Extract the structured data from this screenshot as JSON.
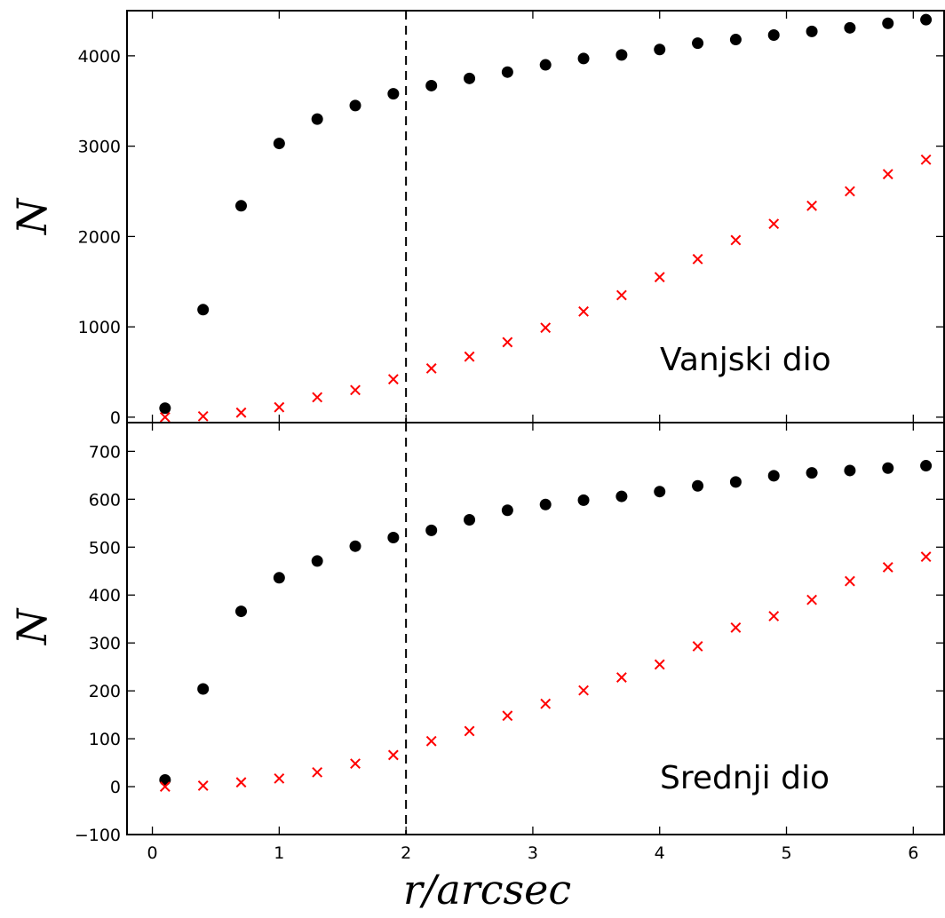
{
  "chart_data": [
    {
      "type": "scatter",
      "panel": "top",
      "annotation": "Vanjski dio",
      "ylabel": "N",
      "xlabel": "",
      "xlim": [
        -0.2,
        6.25
      ],
      "ylim": [
        -60,
        4500
      ],
      "xticks": [
        0,
        1,
        2,
        3,
        4,
        5,
        6
      ],
      "yticks": [
        0,
        1000,
        2000,
        3000,
        4000
      ],
      "vline": 2,
      "grid": false,
      "x": [
        0.1,
        0.4,
        0.7,
        1.0,
        1.3,
        1.6,
        1.9,
        2.2,
        2.5,
        2.8,
        3.1,
        3.4,
        3.7,
        4.0,
        4.3,
        4.6,
        4.9,
        5.2,
        5.5,
        5.8,
        6.1
      ],
      "series": [
        {
          "marker": "circle",
          "color": "#000000",
          "values": [
            100,
            1190,
            2340,
            3030,
            3300,
            3450,
            3580,
            3670,
            3750,
            3820,
            3900,
            3970,
            4010,
            4070,
            4140,
            4180,
            4230,
            4270,
            4310,
            4360,
            4400
          ]
        },
        {
          "marker": "x",
          "color": "#ff0000",
          "values": [
            0,
            10,
            50,
            110,
            220,
            300,
            420,
            540,
            670,
            830,
            990,
            1170,
            1350,
            1550,
            1750,
            1960,
            2140,
            2340,
            2500,
            2690,
            2850
          ]
        }
      ]
    },
    {
      "type": "scatter",
      "panel": "bottom",
      "annotation": "Srednji dio",
      "ylabel": "N",
      "xlabel": "r/arcsec",
      "xlim": [
        -0.2,
        6.25
      ],
      "ylim": [
        -100,
        760
      ],
      "xticks": [
        0,
        1,
        2,
        3,
        4,
        5,
        6
      ],
      "yticks": [
        -100,
        0,
        100,
        200,
        300,
        400,
        500,
        600,
        700
      ],
      "vline": 2,
      "grid": false,
      "x": [
        0.1,
        0.4,
        0.7,
        1.0,
        1.3,
        1.6,
        1.9,
        2.2,
        2.5,
        2.8,
        3.1,
        3.4,
        3.7,
        4.0,
        4.3,
        4.6,
        4.9,
        5.2,
        5.5,
        5.8,
        6.1
      ],
      "series": [
        {
          "marker": "circle",
          "color": "#000000",
          "values": [
            14,
            204,
            366,
            436,
            471,
            502,
            520,
            535,
            557,
            577,
            589,
            598,
            606,
            616,
            628,
            636,
            649,
            655,
            660,
            665,
            670
          ]
        },
        {
          "marker": "x",
          "color": "#ff0000",
          "values": [
            0,
            2,
            9,
            17,
            30,
            48,
            66,
            95,
            116,
            148,
            173,
            201,
            228,
            255,
            293,
            332,
            356,
            390,
            429,
            458,
            480
          ]
        }
      ]
    }
  ]
}
